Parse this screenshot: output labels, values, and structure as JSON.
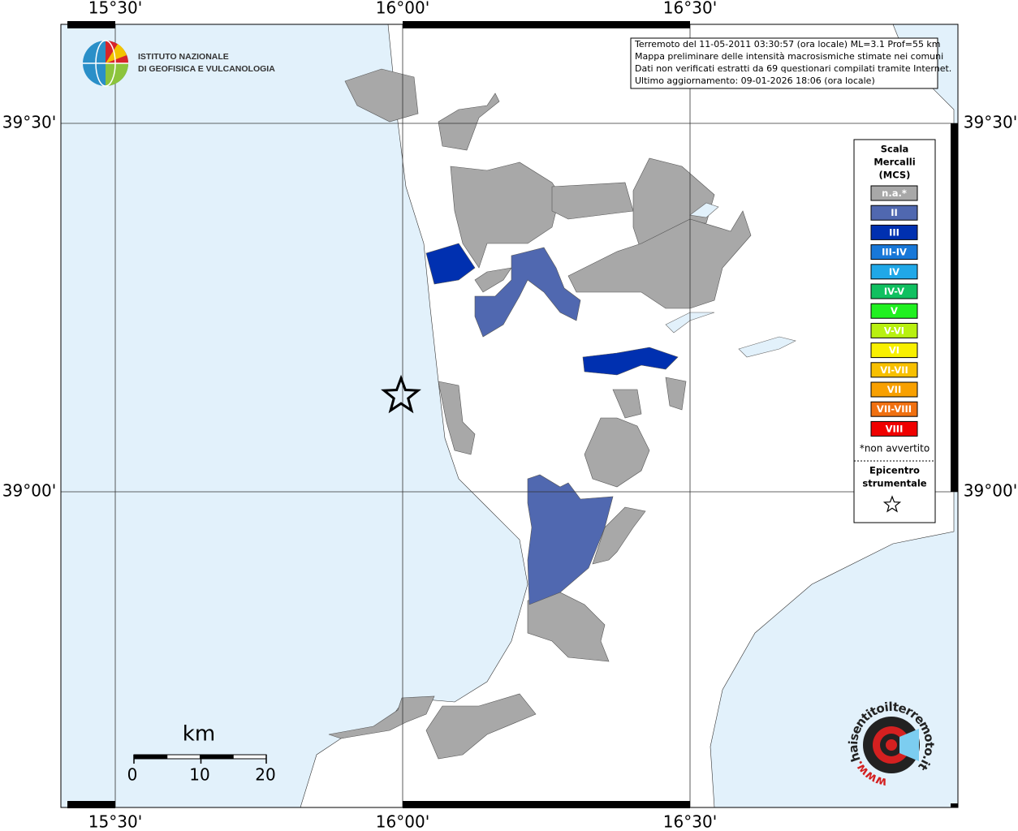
{
  "map": {
    "lon_labels": [
      "15°30'",
      "16°00'",
      "16°30'"
    ],
    "lat_labels": [
      "39°30'",
      "39°00'"
    ]
  },
  "logo": {
    "lines": [
      "ISTITUTO NAZIONALE",
      "DI GEOFISICA E VULCANOLOGIA"
    ]
  },
  "info_box": {
    "lines": [
      "Terremoto del 11-05-2011 03:30:57 (ora locale) ML=3.1 Prof=55 km",
      "Mappa preliminare delle intensità macrosismiche stimate nei comuni",
      "Dati non verificati estratti da 69 questionari compilati tramite Internet.",
      "Ultimo aggiornamento: 09-01-2026 18:06 (ora locale)"
    ]
  },
  "legend": {
    "title": [
      "Scala",
      "Mercalli",
      "(MCS)"
    ],
    "entries": [
      {
        "label": "n.a.*",
        "color": "#a8a8a8"
      },
      {
        "label": "II",
        "color": "#5068b0"
      },
      {
        "label": "III",
        "color": "#0030b0"
      },
      {
        "label": "III-IV",
        "color": "#1878d8"
      },
      {
        "label": "IV",
        "color": "#20a8e8"
      },
      {
        "label": "IV-V",
        "color": "#10c060"
      },
      {
        "label": "V",
        "color": "#20f020"
      },
      {
        "label": "V-VI",
        "color": "#b8f010"
      },
      {
        "label": "VI",
        "color": "#f8f000"
      },
      {
        "label": "VI-VII",
        "color": "#f8c000"
      },
      {
        "label": "VII",
        "color": "#f8a000"
      },
      {
        "label": "VII-VIII",
        "color": "#f07010"
      },
      {
        "label": "VIII",
        "color": "#f00000"
      }
    ],
    "note": "*non avvertito",
    "epicenter": [
      "Epicentro",
      "strumentale"
    ]
  },
  "scale_bar": {
    "unit": "km",
    "ticks": [
      0,
      10,
      20
    ]
  },
  "site_logo": {
    "name": "haisentitoilterremoto.it",
    "prefix": "www."
  }
}
